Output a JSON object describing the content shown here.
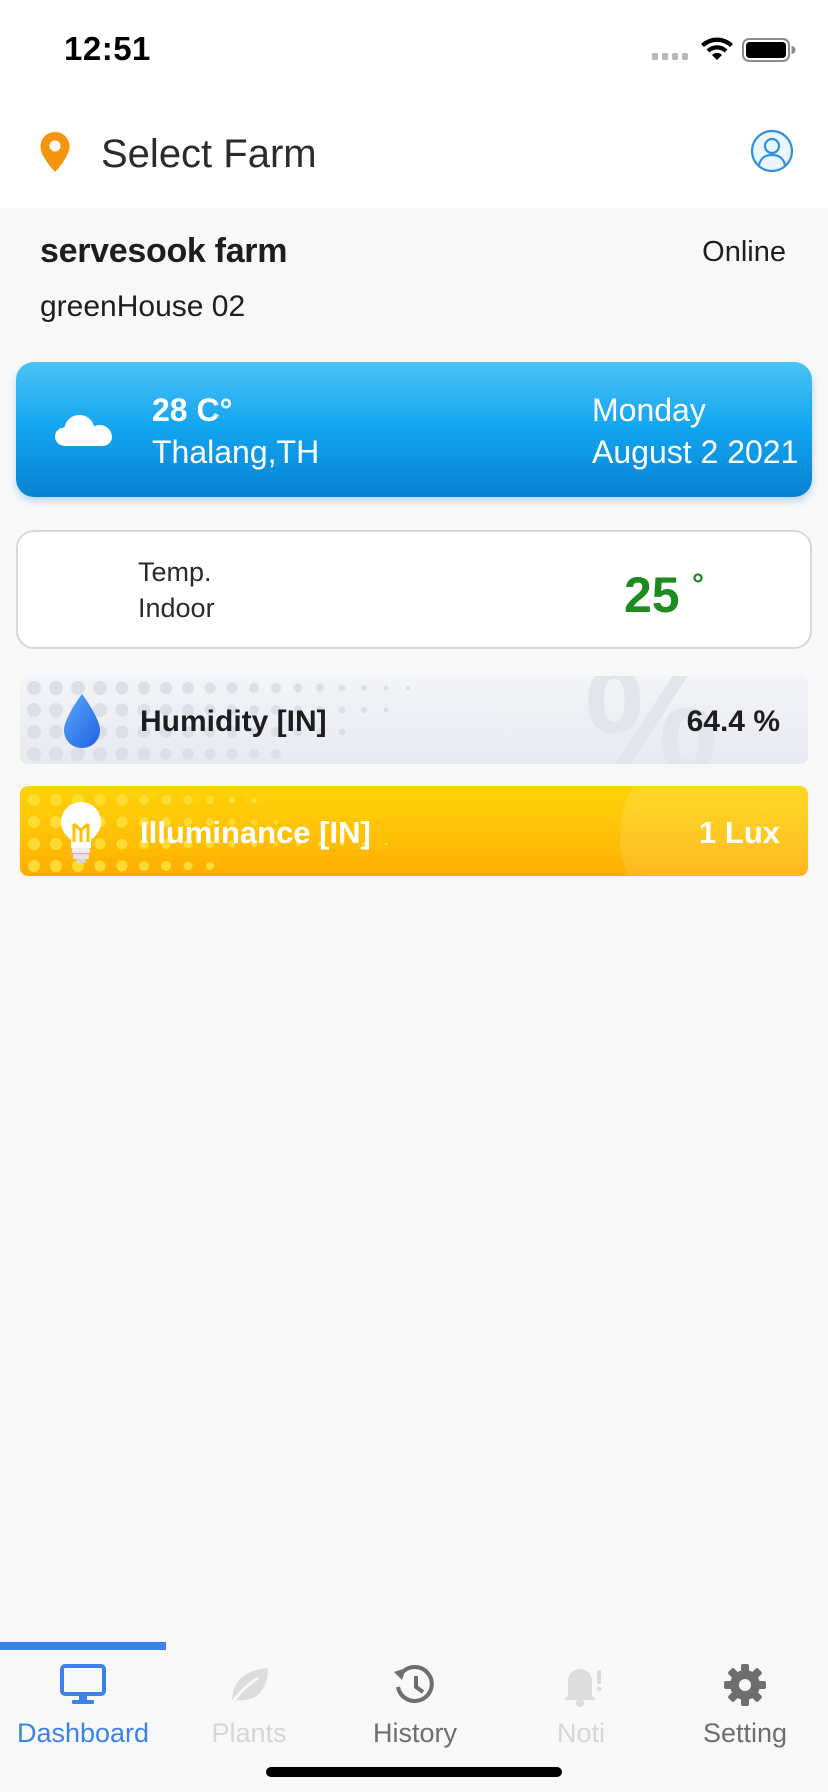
{
  "status_bar": {
    "time": "12:51"
  },
  "header": {
    "title": "Select Farm"
  },
  "farm": {
    "name": "servesook farm",
    "status": "Online",
    "house": "greenHouse 02"
  },
  "weather": {
    "temp": "28 C°",
    "location": "Thalang,TH",
    "day": "Monday",
    "date": "August 2 2021"
  },
  "indoor_temp": {
    "label": "Temp.",
    "sub": "Indoor",
    "value": "25",
    "unit": "°",
    "color": "#1f8a1f"
  },
  "humidity": {
    "label": "Humidity [IN]",
    "value": "64.4 %",
    "bg_symbol": "%"
  },
  "illuminance": {
    "label": "Illuminance [IN]",
    "value": "1 Lux"
  },
  "tabs": [
    {
      "label": "Dashboard",
      "icon": "monitor-icon",
      "active": true
    },
    {
      "label": "Plants",
      "icon": "leaf-icon",
      "active": false,
      "disabled": true
    },
    {
      "label": "History",
      "icon": "history-icon",
      "active": false
    },
    {
      "label": "Noti",
      "icon": "bell-icon",
      "active": false,
      "disabled": true
    },
    {
      "label": "Setting",
      "icon": "gear-icon",
      "active": false
    }
  ],
  "colors": {
    "accent": "#3b82e8",
    "weather_card": "#11a4ef",
    "lux_card": "#ffc107",
    "pin": "#f5950f",
    "tab_inactive": "#6e6e6e",
    "tab_disabled": "#d6d6d6"
  }
}
